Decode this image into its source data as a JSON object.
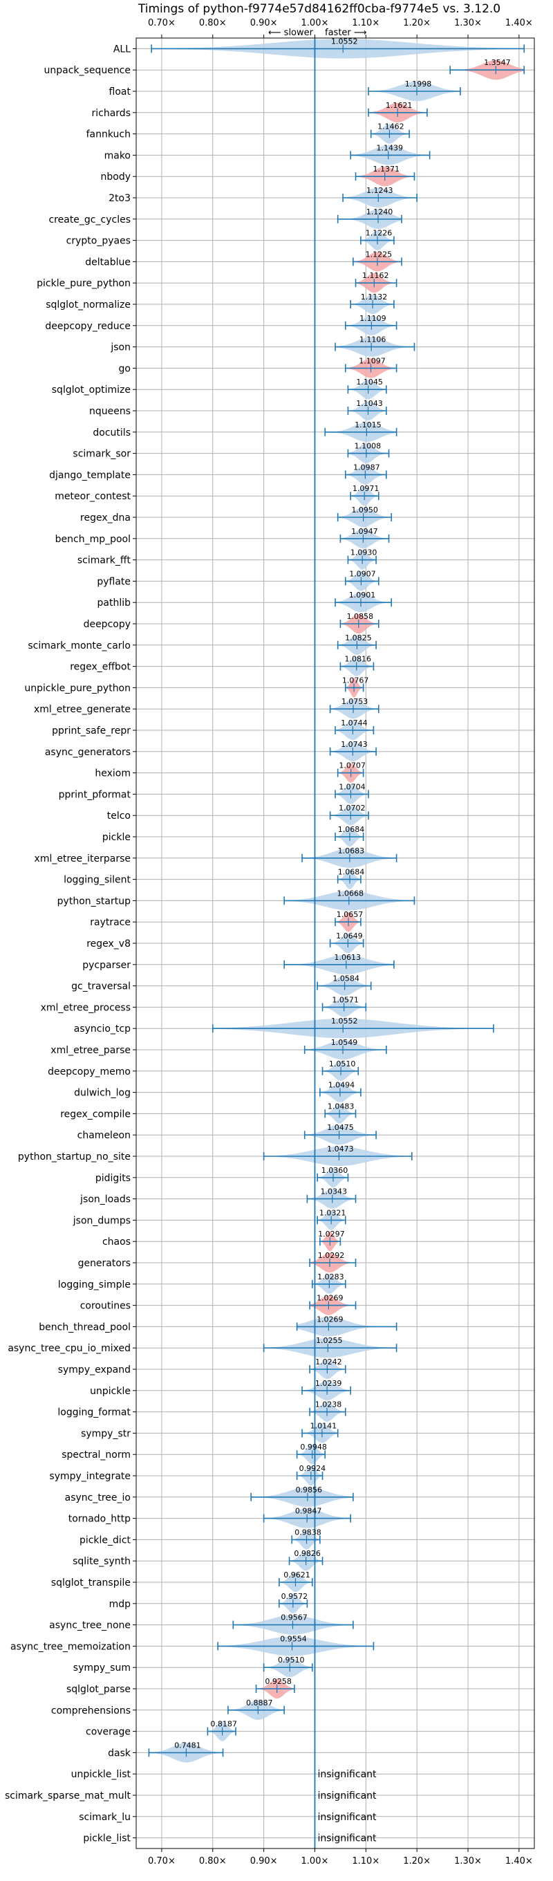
{
  "chart_data": {
    "type": "violin",
    "title": "Timings of python-f9774e57d84162ff0cba-f9774e5 vs. 3.12.0",
    "direction_slower": "⟵ slower",
    "direction_faster": "faster ⟶",
    "xlim": [
      0.65,
      1.43
    ],
    "x_ticks": [
      0.7,
      0.8,
      0.9,
      1.0,
      1.1,
      1.2,
      1.3,
      1.4
    ],
    "x_tick_labels": [
      "0.70×",
      "0.80×",
      "0.90×",
      "1.00×",
      "1.10×",
      "1.20×",
      "1.30×",
      "1.40×"
    ],
    "reference_line": 1.0,
    "grid": true,
    "colors": {
      "normal": "#b9d2ea",
      "highlight": "#f4a6a6",
      "line": "#1f77b4",
      "grid": "#b0b0b0"
    },
    "insignificant_text": "insignificant",
    "benchmarks": [
      {
        "name": "ALL",
        "mean": 1.0552,
        "min": 0.68,
        "max": 1.41,
        "sig": true,
        "hl": false
      },
      {
        "name": "unpack_sequence",
        "mean": 1.3547,
        "min": 1.265,
        "max": 1.41,
        "sig": true,
        "hl": true
      },
      {
        "name": "float",
        "mean": 1.1998,
        "min": 1.105,
        "max": 1.285,
        "sig": true,
        "hl": false
      },
      {
        "name": "richards",
        "mean": 1.1621,
        "min": 1.105,
        "max": 1.22,
        "sig": true,
        "hl": true
      },
      {
        "name": "fannkuch",
        "mean": 1.1462,
        "min": 1.11,
        "max": 1.185,
        "sig": true,
        "hl": false
      },
      {
        "name": "mako",
        "mean": 1.1439,
        "min": 1.07,
        "max": 1.225,
        "sig": true,
        "hl": false
      },
      {
        "name": "nbody",
        "mean": 1.1371,
        "min": 1.08,
        "max": 1.195,
        "sig": true,
        "hl": true
      },
      {
        "name": "2to3",
        "mean": 1.1243,
        "min": 1.055,
        "max": 1.2,
        "sig": true,
        "hl": false
      },
      {
        "name": "create_gc_cycles",
        "mean": 1.124,
        "min": 1.045,
        "max": 1.17,
        "sig": true,
        "hl": false
      },
      {
        "name": "crypto_pyaes",
        "mean": 1.1226,
        "min": 1.09,
        "max": 1.155,
        "sig": true,
        "hl": false
      },
      {
        "name": "deltablue",
        "mean": 1.1225,
        "min": 1.075,
        "max": 1.17,
        "sig": true,
        "hl": true
      },
      {
        "name": "pickle_pure_python",
        "mean": 1.1162,
        "min": 1.08,
        "max": 1.16,
        "sig": true,
        "hl": true
      },
      {
        "name": "sqlglot_normalize",
        "mean": 1.1132,
        "min": 1.07,
        "max": 1.155,
        "sig": true,
        "hl": false
      },
      {
        "name": "deepcopy_reduce",
        "mean": 1.1109,
        "min": 1.06,
        "max": 1.16,
        "sig": true,
        "hl": false
      },
      {
        "name": "json",
        "mean": 1.1106,
        "min": 1.04,
        "max": 1.195,
        "sig": true,
        "hl": false
      },
      {
        "name": "go",
        "mean": 1.1097,
        "min": 1.06,
        "max": 1.16,
        "sig": true,
        "hl": true
      },
      {
        "name": "sqlglot_optimize",
        "mean": 1.1045,
        "min": 1.065,
        "max": 1.14,
        "sig": true,
        "hl": false
      },
      {
        "name": "nqueens",
        "mean": 1.1043,
        "min": 1.065,
        "max": 1.14,
        "sig": true,
        "hl": false
      },
      {
        "name": "docutils",
        "mean": 1.1015,
        "min": 1.02,
        "max": 1.16,
        "sig": true,
        "hl": false
      },
      {
        "name": "scimark_sor",
        "mean": 1.1008,
        "min": 1.065,
        "max": 1.145,
        "sig": true,
        "hl": false
      },
      {
        "name": "django_template",
        "mean": 1.0987,
        "min": 1.06,
        "max": 1.14,
        "sig": true,
        "hl": false
      },
      {
        "name": "meteor_contest",
        "mean": 1.0971,
        "min": 1.07,
        "max": 1.125,
        "sig": true,
        "hl": false
      },
      {
        "name": "regex_dna",
        "mean": 1.095,
        "min": 1.045,
        "max": 1.15,
        "sig": true,
        "hl": false
      },
      {
        "name": "bench_mp_pool",
        "mean": 1.0947,
        "min": 1.05,
        "max": 1.145,
        "sig": true,
        "hl": false
      },
      {
        "name": "scimark_fft",
        "mean": 1.093,
        "min": 1.065,
        "max": 1.12,
        "sig": true,
        "hl": false
      },
      {
        "name": "pyflate",
        "mean": 1.0907,
        "min": 1.06,
        "max": 1.125,
        "sig": true,
        "hl": false
      },
      {
        "name": "pathlib",
        "mean": 1.0901,
        "min": 1.04,
        "max": 1.15,
        "sig": true,
        "hl": false
      },
      {
        "name": "deepcopy",
        "mean": 1.0858,
        "min": 1.05,
        "max": 1.125,
        "sig": true,
        "hl": true
      },
      {
        "name": "scimark_monte_carlo",
        "mean": 1.0825,
        "min": 1.045,
        "max": 1.12,
        "sig": true,
        "hl": false
      },
      {
        "name": "regex_effbot",
        "mean": 1.0816,
        "min": 1.05,
        "max": 1.115,
        "sig": true,
        "hl": false
      },
      {
        "name": "unpickle_pure_python",
        "mean": 1.0767,
        "min": 1.06,
        "max": 1.095,
        "sig": true,
        "hl": true
      },
      {
        "name": "xml_etree_generate",
        "mean": 1.0753,
        "min": 1.03,
        "max": 1.125,
        "sig": true,
        "hl": false
      },
      {
        "name": "pprint_safe_repr",
        "mean": 1.0744,
        "min": 1.04,
        "max": 1.115,
        "sig": true,
        "hl": false
      },
      {
        "name": "async_generators",
        "mean": 1.0743,
        "min": 1.03,
        "max": 1.12,
        "sig": true,
        "hl": false
      },
      {
        "name": "hexiom",
        "mean": 1.0707,
        "min": 1.045,
        "max": 1.095,
        "sig": true,
        "hl": true
      },
      {
        "name": "pprint_pformat",
        "mean": 1.0704,
        "min": 1.04,
        "max": 1.105,
        "sig": true,
        "hl": false
      },
      {
        "name": "telco",
        "mean": 1.0702,
        "min": 1.03,
        "max": 1.105,
        "sig": true,
        "hl": false
      },
      {
        "name": "pickle",
        "mean": 1.0684,
        "min": 1.04,
        "max": 1.095,
        "sig": true,
        "hl": false
      },
      {
        "name": "xml_etree_iterparse",
        "mean": 1.0683,
        "min": 0.975,
        "max": 1.16,
        "sig": true,
        "hl": false
      },
      {
        "name": "logging_silent",
        "mean": 1.0684,
        "min": 1.045,
        "max": 1.09,
        "sig": true,
        "hl": false
      },
      {
        "name": "python_startup",
        "mean": 1.0668,
        "min": 0.94,
        "max": 1.195,
        "sig": true,
        "hl": false
      },
      {
        "name": "raytrace",
        "mean": 1.0657,
        "min": 1.04,
        "max": 1.09,
        "sig": true,
        "hl": true
      },
      {
        "name": "regex_v8",
        "mean": 1.0649,
        "min": 1.03,
        "max": 1.095,
        "sig": true,
        "hl": false
      },
      {
        "name": "pycparser",
        "mean": 1.0613,
        "min": 0.94,
        "max": 1.155,
        "sig": true,
        "hl": false
      },
      {
        "name": "gc_traversal",
        "mean": 1.0584,
        "min": 1.005,
        "max": 1.11,
        "sig": true,
        "hl": false
      },
      {
        "name": "xml_etree_process",
        "mean": 1.0571,
        "min": 1.015,
        "max": 1.1,
        "sig": true,
        "hl": false
      },
      {
        "name": "asyncio_tcp",
        "mean": 1.0552,
        "min": 0.8,
        "max": 1.35,
        "sig": true,
        "hl": false
      },
      {
        "name": "xml_etree_parse",
        "mean": 1.0549,
        "min": 0.98,
        "max": 1.14,
        "sig": true,
        "hl": false
      },
      {
        "name": "deepcopy_memo",
        "mean": 1.051,
        "min": 1.015,
        "max": 1.085,
        "sig": true,
        "hl": false
      },
      {
        "name": "dulwich_log",
        "mean": 1.0494,
        "min": 1.01,
        "max": 1.09,
        "sig": true,
        "hl": false
      },
      {
        "name": "regex_compile",
        "mean": 1.0483,
        "min": 1.02,
        "max": 1.08,
        "sig": true,
        "hl": false
      },
      {
        "name": "chameleon",
        "mean": 1.0475,
        "min": 0.98,
        "max": 1.12,
        "sig": true,
        "hl": false
      },
      {
        "name": "python_startup_no_site",
        "mean": 1.0473,
        "min": 0.9,
        "max": 1.19,
        "sig": true,
        "hl": false
      },
      {
        "name": "pidigits",
        "mean": 1.036,
        "min": 1.005,
        "max": 1.065,
        "sig": true,
        "hl": false
      },
      {
        "name": "json_loads",
        "mean": 1.0343,
        "min": 0.985,
        "max": 1.08,
        "sig": true,
        "hl": false
      },
      {
        "name": "json_dumps",
        "mean": 1.0321,
        "min": 1.005,
        "max": 1.06,
        "sig": true,
        "hl": false
      },
      {
        "name": "chaos",
        "mean": 1.0297,
        "min": 1.01,
        "max": 1.05,
        "sig": true,
        "hl": true
      },
      {
        "name": "generators",
        "mean": 1.0292,
        "min": 0.99,
        "max": 1.08,
        "sig": true,
        "hl": true
      },
      {
        "name": "logging_simple",
        "mean": 1.0283,
        "min": 0.995,
        "max": 1.06,
        "sig": true,
        "hl": false
      },
      {
        "name": "coroutines",
        "mean": 1.0269,
        "min": 0.99,
        "max": 1.08,
        "sig": true,
        "hl": true
      },
      {
        "name": "bench_thread_pool",
        "mean": 1.0269,
        "min": 0.965,
        "max": 1.16,
        "sig": true,
        "hl": false
      },
      {
        "name": "async_tree_cpu_io_mixed",
        "mean": 1.0255,
        "min": 0.9,
        "max": 1.16,
        "sig": true,
        "hl": false
      },
      {
        "name": "sympy_expand",
        "mean": 1.0242,
        "min": 0.99,
        "max": 1.06,
        "sig": true,
        "hl": false
      },
      {
        "name": "unpickle",
        "mean": 1.0239,
        "min": 0.975,
        "max": 1.07,
        "sig": true,
        "hl": false
      },
      {
        "name": "logging_format",
        "mean": 1.0238,
        "min": 0.99,
        "max": 1.06,
        "sig": true,
        "hl": false
      },
      {
        "name": "sympy_str",
        "mean": 1.0141,
        "min": 0.975,
        "max": 1.045,
        "sig": true,
        "hl": false
      },
      {
        "name": "spectral_norm",
        "mean": 0.9948,
        "min": 0.965,
        "max": 1.02,
        "sig": true,
        "hl": false
      },
      {
        "name": "sympy_integrate",
        "mean": 0.9924,
        "min": 0.965,
        "max": 1.015,
        "sig": true,
        "hl": false
      },
      {
        "name": "async_tree_io",
        "mean": 0.9856,
        "min": 0.875,
        "max": 1.075,
        "sig": true,
        "hl": false
      },
      {
        "name": "tornado_http",
        "mean": 0.9847,
        "min": 0.9,
        "max": 1.07,
        "sig": true,
        "hl": false
      },
      {
        "name": "pickle_dict",
        "mean": 0.9838,
        "min": 0.955,
        "max": 1.01,
        "sig": true,
        "hl": false
      },
      {
        "name": "sqlite_synth",
        "mean": 0.9826,
        "min": 0.95,
        "max": 1.015,
        "sig": true,
        "hl": false
      },
      {
        "name": "sqlglot_transpile",
        "mean": 0.9621,
        "min": 0.93,
        "max": 0.995,
        "sig": true,
        "hl": false
      },
      {
        "name": "mdp",
        "mean": 0.9572,
        "min": 0.93,
        "max": 0.985,
        "sig": true,
        "hl": false
      },
      {
        "name": "async_tree_none",
        "mean": 0.9567,
        "min": 0.84,
        "max": 1.075,
        "sig": true,
        "hl": false
      },
      {
        "name": "async_tree_memoization",
        "mean": 0.9554,
        "min": 0.81,
        "max": 1.115,
        "sig": true,
        "hl": false
      },
      {
        "name": "sympy_sum",
        "mean": 0.951,
        "min": 0.9,
        "max": 0.995,
        "sig": true,
        "hl": false
      },
      {
        "name": "sqlglot_parse",
        "mean": 0.9258,
        "min": 0.885,
        "max": 0.96,
        "sig": true,
        "hl": true
      },
      {
        "name": "comprehensions",
        "mean": 0.8887,
        "min": 0.83,
        "max": 0.94,
        "sig": true,
        "hl": false
      },
      {
        "name": "coverage",
        "mean": 0.8187,
        "min": 0.79,
        "max": 0.845,
        "sig": true,
        "hl": false
      },
      {
        "name": "dask",
        "mean": 0.7481,
        "min": 0.675,
        "max": 0.82,
        "sig": true,
        "hl": false
      },
      {
        "name": "unpickle_list",
        "sig": false
      },
      {
        "name": "scimark_sparse_mat_mult",
        "sig": false
      },
      {
        "name": "scimark_lu",
        "sig": false
      },
      {
        "name": "pickle_list",
        "sig": false
      }
    ]
  }
}
